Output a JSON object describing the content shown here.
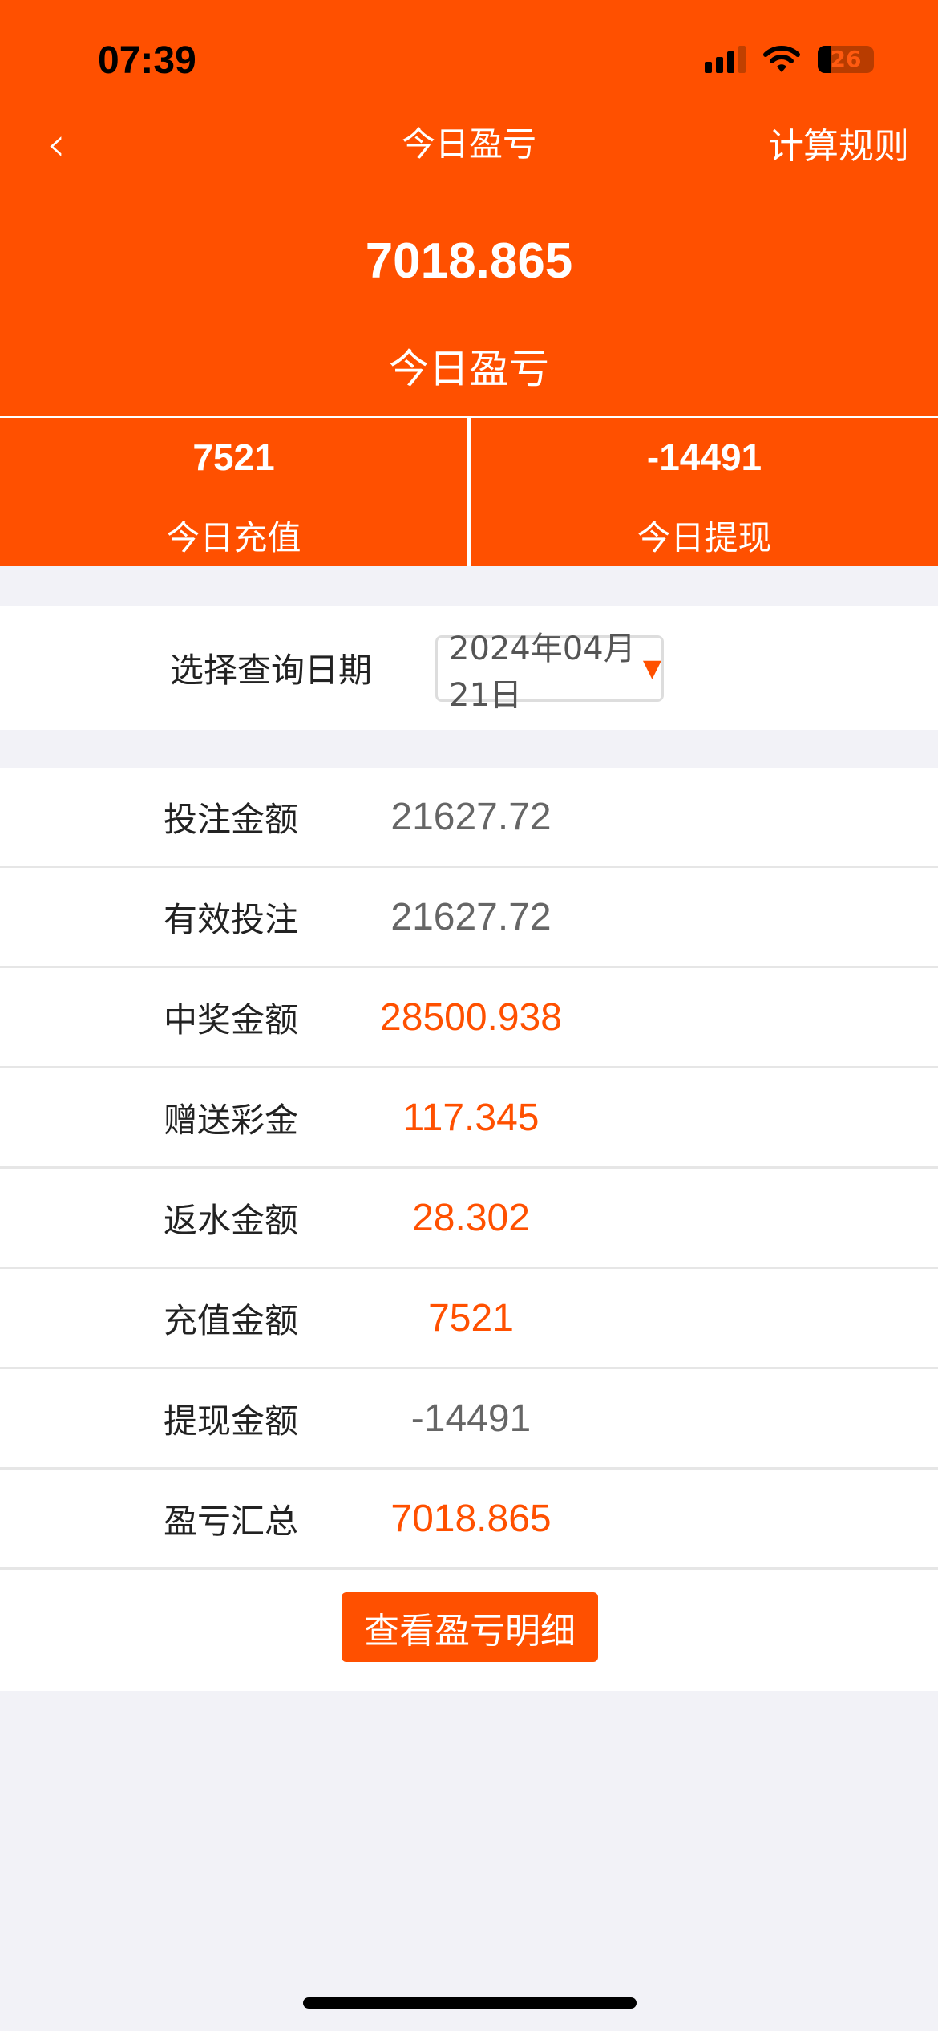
{
  "status_bar": {
    "time": "07:39",
    "battery": "26"
  },
  "nav": {
    "back_icon": "chevron-left-icon",
    "title": "今日盈亏",
    "rules_label": "计算规则"
  },
  "summary": {
    "value": "7018.865",
    "label": "今日盈亏"
  },
  "stats": [
    {
      "value": "7521",
      "label": "今日充值"
    },
    {
      "value": "-14491",
      "label": "今日提现"
    }
  ],
  "date_filter": {
    "label": "选择查询日期",
    "value": "2024年04月21日"
  },
  "rows": [
    {
      "label": "投注金额",
      "value": "21627.72",
      "highlight": false
    },
    {
      "label": "有效投注",
      "value": "21627.72",
      "highlight": false
    },
    {
      "label": "中奖金额",
      "value": "28500.938",
      "highlight": true
    },
    {
      "label": "赠送彩金",
      "value": "117.345",
      "highlight": true
    },
    {
      "label": "返水金额",
      "value": "28.302",
      "highlight": true
    },
    {
      "label": "充值金额",
      "value": "7521",
      "highlight": true
    },
    {
      "label": "提现金额",
      "value": "-14491",
      "highlight": false
    },
    {
      "label": "盈亏汇总",
      "value": "7018.865",
      "highlight": true
    }
  ],
  "detail_button": "查看盈亏明细",
  "colors": {
    "accent": "#ff5000",
    "muted": "#666666",
    "background": "#f2f2f7"
  }
}
